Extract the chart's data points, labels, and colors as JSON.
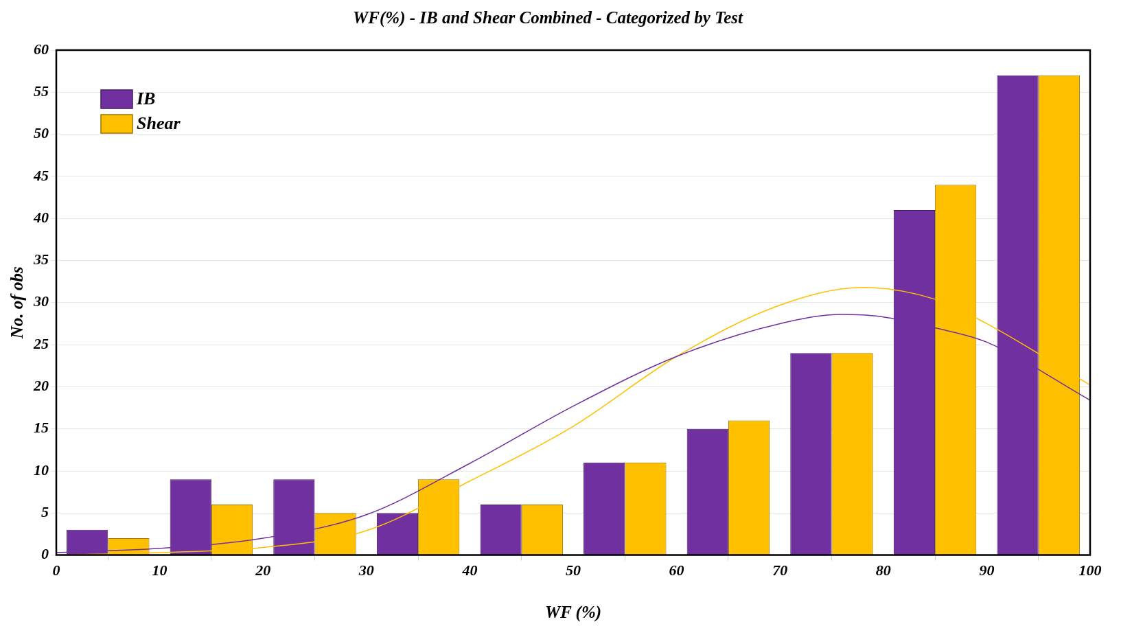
{
  "chart_data": {
    "type": "histogram",
    "title": "WF(%) - IB and Shear Combined - Categorized by Test",
    "xlabel": "WF (%)",
    "ylabel": "No. of obs",
    "bins": [
      0,
      10,
      20,
      30,
      40,
      50,
      60,
      70,
      80,
      90,
      100
    ],
    "series": [
      {
        "name": "IB",
        "color": "#7030a0",
        "values": [
          3,
          9,
          9,
          5,
          6,
          11,
          15,
          24,
          41,
          57
        ]
      },
      {
        "name": "Shear",
        "color": "#ffc000",
        "values": [
          2,
          6,
          5,
          9,
          6,
          11,
          16,
          24,
          44,
          57
        ]
      },
      {
        "type": "line",
        "color": "#7030a0",
        "x": [
          0,
          10,
          20,
          30,
          40,
          50,
          60,
          70,
          76,
          80,
          85,
          90,
          100
        ],
        "values": [
          0.3,
          0.8,
          2,
          4.8,
          10.9,
          17.7,
          23.6,
          27.5,
          28.6,
          28.3,
          27,
          25.3,
          18.4
        ]
      },
      {
        "type": "line",
        "color": "#ffc000",
        "x": [
          0,
          10,
          20,
          30,
          40,
          50,
          60,
          70,
          78,
          85,
          90,
          100
        ],
        "values": [
          0,
          0.3,
          0.9,
          2.9,
          8.8,
          15.3,
          23.6,
          29.7,
          31.8,
          30.4,
          27.5,
          20.2
        ]
      }
    ],
    "xlim": [
      0,
      100
    ],
    "xticks": [
      0,
      10,
      20,
      30,
      40,
      50,
      60,
      70,
      80,
      90,
      100
    ],
    "ylim": [
      0,
      60
    ],
    "yticks": [
      0,
      5,
      10,
      15,
      20,
      25,
      30,
      35,
      40,
      45,
      50,
      55,
      60
    ],
    "grid": "y",
    "legend": "top left"
  }
}
